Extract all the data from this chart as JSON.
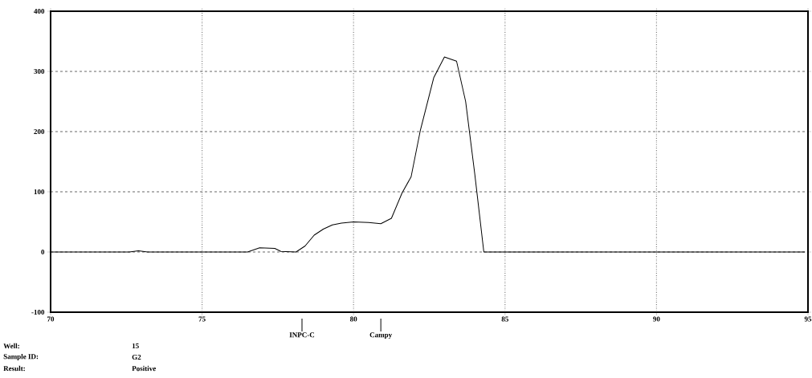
{
  "chart_data": {
    "type": "line",
    "x": [
      70,
      72.6,
      72.9,
      73.2,
      76.5,
      76.9,
      77.4,
      77.6,
      78.1,
      78.4,
      78.7,
      79.0,
      79.3,
      79.6,
      80.0,
      80.5,
      80.9,
      81.25,
      81.6,
      81.9,
      82.2,
      82.65,
      83.0,
      83.4,
      83.7,
      84.0,
      84.3,
      94.9
    ],
    "series": [
      {
        "color": "#000000",
        "values": [
          0,
          0,
          2,
          0,
          0,
          7,
          6,
          1,
          0,
          10,
          28,
          38,
          45,
          48,
          50,
          49,
          47,
          56,
          98,
          125,
          201,
          290,
          324,
          317,
          250,
          130,
          0,
          0
        ]
      }
    ],
    "xlim": [
      70,
      95
    ],
    "ylim": [
      -100,
      400
    ],
    "xticks": [
      70,
      75,
      80,
      85,
      90,
      95
    ],
    "yticks": [
      -100,
      0,
      100,
      200,
      300,
      400
    ],
    "grid": true,
    "marker": "none",
    "line_style": "solid",
    "annotations": [
      {
        "text": "Campy",
        "x": 80.9
      },
      "Well:",
      "15",
      "Sample ID:",
      "G2",
      "Result:",
      "Positive",
      "INPC-C"
    ]
  }
}
